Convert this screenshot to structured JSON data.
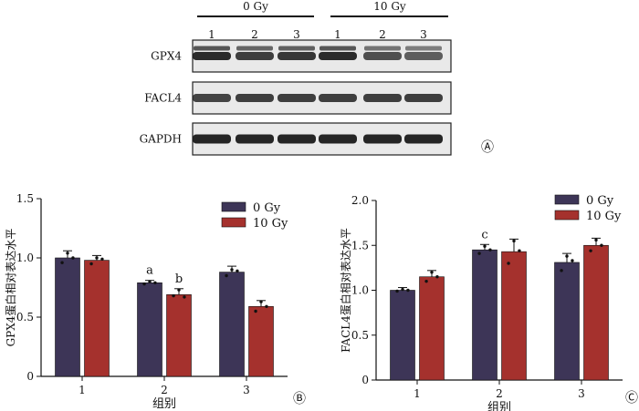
{
  "blot": {
    "group_labels": [
      "0 Gy",
      "10 Gy"
    ],
    "lane_labels": [
      "1",
      "2",
      "3",
      "1",
      "2",
      "3"
    ],
    "rows": [
      {
        "label": "GPX4",
        "intensity": [
          0.95,
          0.8,
          0.85,
          0.95,
          0.65,
          0.55
        ]
      },
      {
        "label": "FACL4",
        "intensity": [
          0.75,
          0.8,
          0.8,
          0.8,
          0.8,
          0.8
        ]
      },
      {
        "label": "GAPDH",
        "intensity": [
          1,
          1,
          1,
          1,
          1,
          1
        ]
      }
    ],
    "panel_label": "Ⓐ"
  },
  "chart_data": [
    {
      "type": "bar",
      "panel_label": "Ⓑ",
      "categories": [
        "1",
        "2",
        "3"
      ],
      "xlabel": "组别",
      "ylabel": "GPX4蛋白相对表达水平",
      "ylim": [
        0,
        1.5
      ],
      "yticks": [
        "0",
        "0.5",
        "1.0",
        "1.5"
      ],
      "series": [
        {
          "name": "0 Gy",
          "color": "#3d3557",
          "values": [
            1.0,
            0.79,
            0.88
          ],
          "errors": [
            0.06,
            0.02,
            0.05
          ],
          "points": [
            [
              0.96,
              1.04,
              1.0
            ],
            [
              0.78,
              0.8,
              0.79
            ],
            [
              0.85,
              0.9,
              0.89
            ]
          ]
        },
        {
          "name": "10 Gy",
          "color": "#a5312d",
          "values": [
            0.98,
            0.69,
            0.59
          ],
          "errors": [
            0.04,
            0.05,
            0.05
          ],
          "points": [
            [
              0.95,
              1.0,
              0.99
            ],
            [
              0.68,
              0.73,
              0.67
            ],
            [
              0.55,
              0.63,
              0.59
            ]
          ]
        }
      ],
      "annotations": [
        {
          "category": 1,
          "series": 0,
          "text": "a"
        },
        {
          "category": 1,
          "series": 1,
          "text": "b"
        }
      ]
    },
    {
      "type": "bar",
      "panel_label": "Ⓒ",
      "categories": [
        "1",
        "2",
        "3"
      ],
      "xlabel": "组别",
      "ylabel": "FACL4蛋白相对表达水平",
      "ylim": [
        0,
        2.0
      ],
      "yticks": [
        "0",
        "0.5",
        "1.0",
        "1.5",
        "2.0"
      ],
      "series": [
        {
          "name": "0 Gy",
          "color": "#3d3557",
          "values": [
            1.0,
            1.45,
            1.31
          ],
          "errors": [
            0.03,
            0.06,
            0.1
          ],
          "points": [
            [
              0.99,
              1.01,
              1.0
            ],
            [
              1.41,
              1.49,
              1.45
            ],
            [
              1.22,
              1.38,
              1.33
            ]
          ]
        },
        {
          "name": "10 Gy",
          "color": "#a5312d",
          "values": [
            1.15,
            1.43,
            1.5
          ],
          "errors": [
            0.07,
            0.14,
            0.08
          ],
          "points": [
            [
              1.1,
              1.2,
              1.15
            ],
            [
              1.3,
              1.55,
              1.44
            ],
            [
              1.44,
              1.56,
              1.5
            ]
          ]
        }
      ],
      "annotations": [
        {
          "category": 1,
          "series": 0,
          "text": "c"
        }
      ]
    }
  ]
}
